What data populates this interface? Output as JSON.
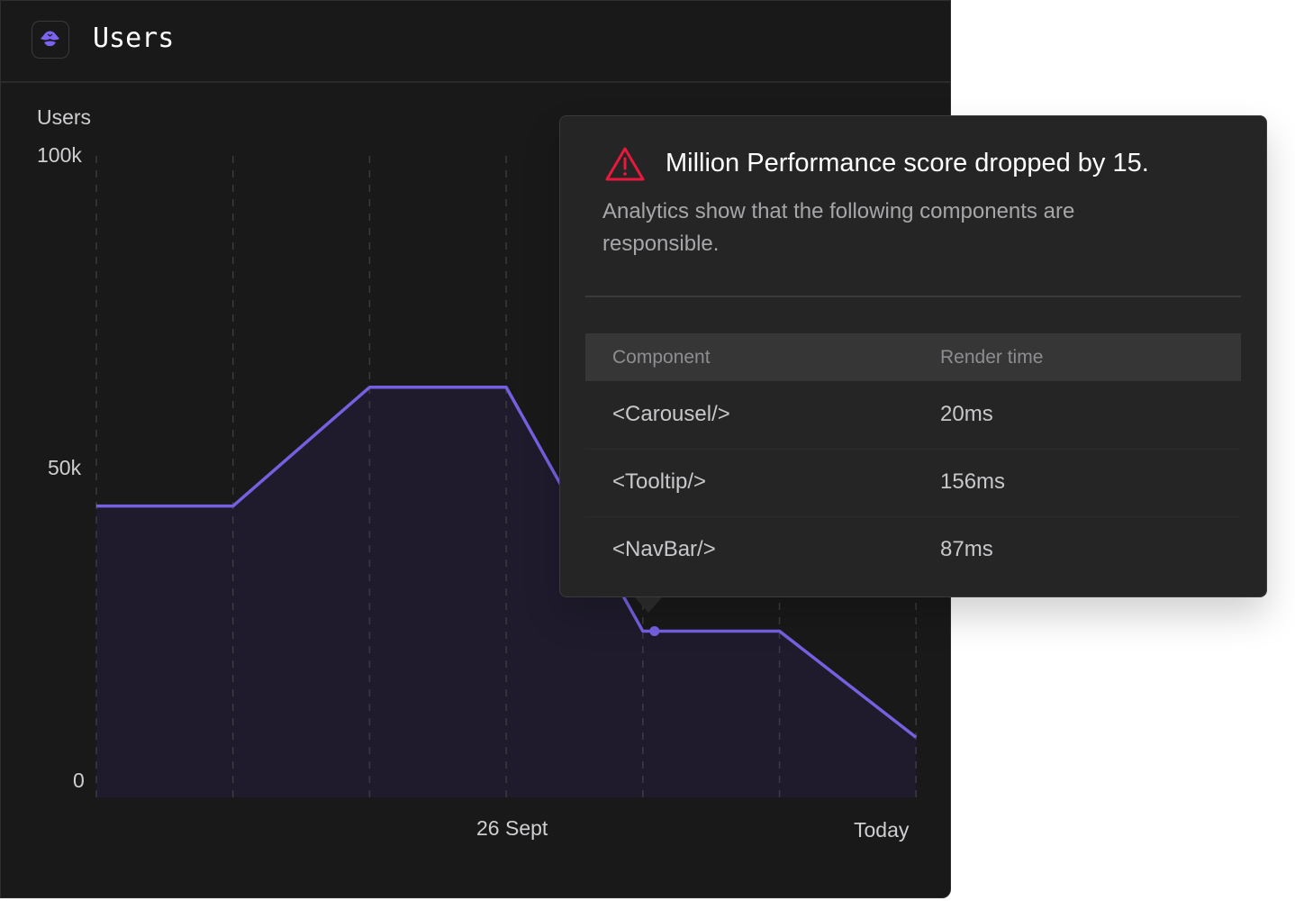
{
  "header": {
    "title": "Users",
    "logo_icon": "million-logo-icon"
  },
  "chart_data": {
    "type": "area",
    "ylabel": "Users",
    "ytick_labels": [
      "100k",
      "50k",
      "0"
    ],
    "yticks": [
      100000,
      50000,
      0
    ],
    "ylim": [
      0,
      100000
    ],
    "xtick_labels": [
      "26 Sept",
      "Today"
    ],
    "x": [
      0,
      1,
      2,
      3,
      4,
      5,
      6
    ],
    "values": [
      44000,
      63000,
      63000,
      24000,
      24000,
      7000,
      7000
    ],
    "series_points": [
      44000,
      44000,
      63000,
      63000,
      24000,
      24000,
      7000
    ],
    "grid": "vertical dashed",
    "line_color": "#7560e0",
    "fill_color": "#201b2e",
    "highlighted_index": 4
  },
  "tooltip": {
    "icon": "warning-triangle-icon",
    "accent": "#e8193c",
    "title": "Million Performance score dropped by 15.",
    "description": "Analytics show that the following components are responsible.",
    "columns": [
      "Component",
      "Render time"
    ],
    "rows": [
      {
        "component": "<Carousel/>",
        "time": "20ms"
      },
      {
        "component": "<Tooltip/>",
        "time": "156ms"
      },
      {
        "component": "<NavBar/>",
        "time": "87ms"
      }
    ]
  }
}
